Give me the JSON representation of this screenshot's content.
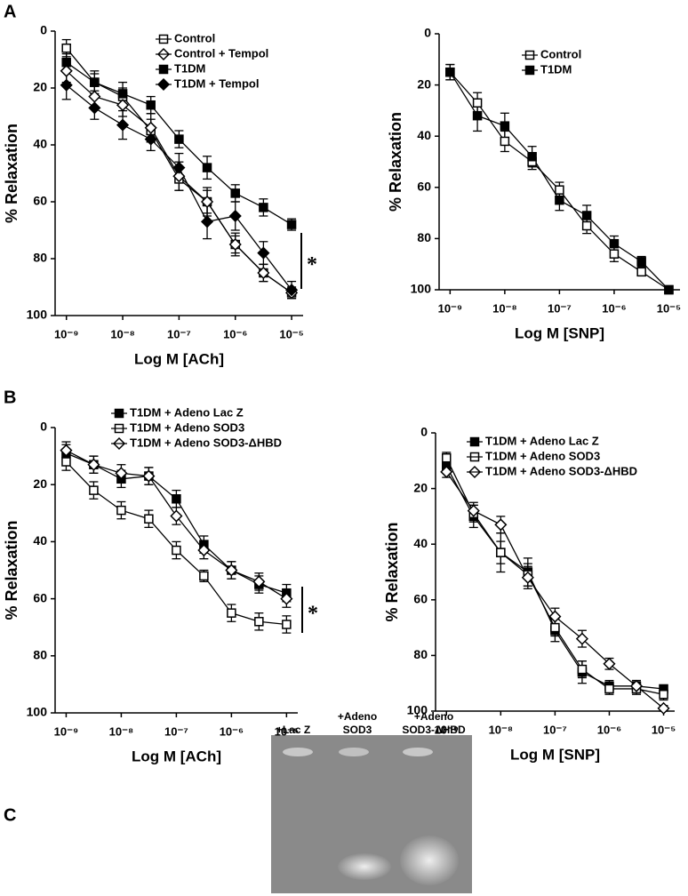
{
  "panel_labels": [
    "A",
    "B",
    "C"
  ],
  "chart_data": [
    {
      "type": "line",
      "xlabel": "Log M [ACh]",
      "ylabel": "% Relaxation",
      "log_x": true,
      "y_reversed": true,
      "xlim": [
        6.3e-10,
        1.6e-05
      ],
      "ylim": [
        0,
        100
      ],
      "yticks": [
        0,
        20,
        40,
        60,
        80,
        100
      ],
      "xticks": [
        {
          "value": 1e-09,
          "label": "10⁻⁹"
        },
        {
          "value": 1e-08,
          "label": "10⁻⁸"
        },
        {
          "value": 1e-07,
          "label": "10⁻⁷"
        },
        {
          "value": 1e-06,
          "label": "10⁻⁶"
        },
        {
          "value": 1e-05,
          "label": "10⁻⁵"
        }
      ],
      "x": [
        1e-09,
        3.16e-09,
        1e-08,
        3.16e-08,
        1e-07,
        3.16e-07,
        1e-06,
        3.16e-06,
        1e-05
      ],
      "annotation": "*",
      "series": [
        {
          "name": "Control",
          "color": "#000000",
          "marker": "square",
          "filled": false,
          "values": [
            6,
            18,
            23,
            35,
            52,
            60,
            75,
            85,
            92
          ],
          "errors": [
            3,
            3,
            3,
            4,
            4,
            4,
            3,
            3,
            2
          ]
        },
        {
          "name": "Control + Tempol",
          "color": "#000000",
          "marker": "diamond",
          "filled": false,
          "values": [
            14,
            23,
            26,
            34,
            51,
            60,
            75,
            85,
            92
          ],
          "errors": [
            4,
            4,
            4,
            5,
            5,
            5,
            4,
            3,
            2
          ]
        },
        {
          "name": "T1DM",
          "color": "#000000",
          "marker": "square",
          "filled": true,
          "values": [
            11,
            18,
            22,
            26,
            38,
            48,
            57,
            62,
            68
          ],
          "errors": [
            3,
            4,
            4,
            3,
            3,
            4,
            3,
            3,
            2
          ]
        },
        {
          "name": "T1DM + Tempol",
          "color": "#000000",
          "marker": "diamond",
          "filled": true,
          "values": [
            19,
            27,
            33,
            38,
            48,
            67,
            65,
            78,
            91
          ],
          "errors": [
            5,
            4,
            5,
            4,
            5,
            6,
            5,
            4,
            3
          ]
        }
      ]
    },
    {
      "type": "line",
      "xlabel": "Log M [SNP]",
      "ylabel": "% Relaxation",
      "log_x": true,
      "y_reversed": true,
      "xlim": [
        6.3e-10,
        1.6e-05
      ],
      "ylim": [
        0,
        100
      ],
      "yticks": [
        0,
        20,
        40,
        60,
        80,
        100
      ],
      "xticks": [
        {
          "value": 1e-09,
          "label": "10⁻⁹"
        },
        {
          "value": 1e-08,
          "label": "10⁻⁸"
        },
        {
          "value": 1e-07,
          "label": "10⁻⁷"
        },
        {
          "value": 1e-06,
          "label": "10⁻⁶"
        },
        {
          "value": 1e-05,
          "label": "10⁻⁵"
        }
      ],
      "x": [
        1e-09,
        3.16e-09,
        1e-08,
        3.16e-08,
        1e-07,
        3.16e-07,
        1e-06,
        3.16e-06,
        1e-05
      ],
      "series": [
        {
          "name": "Control",
          "color": "#000000",
          "marker": "square",
          "filled": false,
          "values": [
            15,
            27,
            42,
            50,
            61,
            75,
            86,
            93,
            100
          ],
          "errors": [
            3,
            4,
            4,
            3,
            3,
            3,
            3,
            1,
            1
          ]
        },
        {
          "name": "T1DM",
          "color": "#000000",
          "marker": "square",
          "filled": true,
          "values": [
            15,
            32,
            36,
            48,
            65,
            71,
            82,
            89,
            100
          ],
          "errors": [
            3,
            6,
            5,
            4,
            4,
            4,
            3,
            2,
            1
          ]
        }
      ]
    },
    {
      "type": "line",
      "xlabel": "Log M [ACh]",
      "ylabel": "% Relaxation",
      "log_x": true,
      "y_reversed": true,
      "xlim": [
        6.3e-10,
        1.6e-05
      ],
      "ylim": [
        0,
        100
      ],
      "yticks": [
        0,
        20,
        40,
        60,
        80,
        100
      ],
      "xticks": [
        {
          "value": 1e-09,
          "label": "10⁻⁹"
        },
        {
          "value": 1e-08,
          "label": "10⁻⁸"
        },
        {
          "value": 1e-07,
          "label": "10⁻⁷"
        },
        {
          "value": 1e-06,
          "label": "10⁻⁶"
        },
        {
          "value": 1e-05,
          "label": "10⁻⁵"
        }
      ],
      "x": [
        1e-09,
        3.16e-09,
        1e-08,
        3.16e-08,
        1e-07,
        3.16e-07,
        1e-06,
        3.16e-06,
        1e-05
      ],
      "annotation": "*",
      "series": [
        {
          "name": "T1DM + Adeno Lac Z",
          "color": "#000000",
          "marker": "square",
          "filled": true,
          "values": [
            9,
            13,
            18,
            17,
            25,
            41,
            50,
            55,
            58
          ],
          "errors": [
            3,
            3,
            3,
            3,
            3,
            3,
            3,
            3,
            3
          ]
        },
        {
          "name": "T1DM + Adeno SOD3",
          "color": "#000000",
          "marker": "square",
          "filled": false,
          "values": [
            12,
            22,
            29,
            32,
            43,
            52,
            65,
            68,
            69
          ],
          "errors": [
            3,
            3,
            3,
            3,
            3,
            2,
            3,
            3,
            3
          ]
        },
        {
          "name": "T1DM + Adeno SOD3-ΔHBD",
          "color": "#000000",
          "marker": "diamond",
          "filled": false,
          "values": [
            8,
            13,
            16,
            17,
            31,
            43,
            50,
            54,
            60
          ],
          "errors": [
            3,
            3,
            3,
            3,
            3,
            3,
            3,
            3,
            3
          ]
        }
      ]
    },
    {
      "type": "line",
      "xlabel": "Log M [SNP]",
      "ylabel": "% Relaxation",
      "log_x": true,
      "y_reversed": true,
      "xlim": [
        6.3e-10,
        1.6e-05
      ],
      "ylim": [
        0,
        100
      ],
      "yticks": [
        0,
        20,
        40,
        60,
        80,
        100
      ],
      "xticks": [
        {
          "value": 1e-09,
          "label": "10⁻⁹"
        },
        {
          "value": 1e-08,
          "label": "10⁻⁸"
        },
        {
          "value": 1e-07,
          "label": "10⁻⁷"
        },
        {
          "value": 1e-06,
          "label": "10⁻⁶"
        },
        {
          "value": 1e-05,
          "label": "10⁻⁵"
        }
      ],
      "x": [
        1e-09,
        3.16e-09,
        1e-08,
        3.16e-08,
        1e-07,
        3.16e-07,
        1e-06,
        3.16e-06,
        1e-05
      ],
      "series": [
        {
          "name": "T1DM + Adeno Lac  Z",
          "color": "#000000",
          "marker": "square",
          "filled": true,
          "values": [
            12,
            30,
            43,
            50,
            71,
            86,
            91,
            91,
            92
          ],
          "errors": [
            2,
            4,
            7,
            5,
            4,
            4,
            2,
            2,
            1
          ]
        },
        {
          "name": "T1DM + Adeno SOD3",
          "color": "#000000",
          "marker": "square",
          "filled": false,
          "values": [
            9,
            29,
            43,
            51,
            70,
            85,
            92,
            92,
            94
          ],
          "errors": [
            2,
            3,
            4,
            4,
            3,
            3,
            2,
            2,
            2
          ]
        },
        {
          "name": "T1DM + Adeno SOD3-ΔHBD",
          "color": "#000000",
          "marker": "diamond",
          "filled": false,
          "values": [
            14,
            28,
            33,
            52,
            66,
            74,
            83,
            91,
            99
          ],
          "errors": [
            2,
            3,
            3,
            4,
            3,
            3,
            2,
            2,
            1
          ]
        }
      ]
    }
  ],
  "gel": {
    "lanes": [
      [
        "+Lac Z"
      ],
      [
        "+Adeno",
        "SOD3"
      ],
      [
        "+Adeno",
        "SOD3-ΔHBD"
      ]
    ]
  }
}
